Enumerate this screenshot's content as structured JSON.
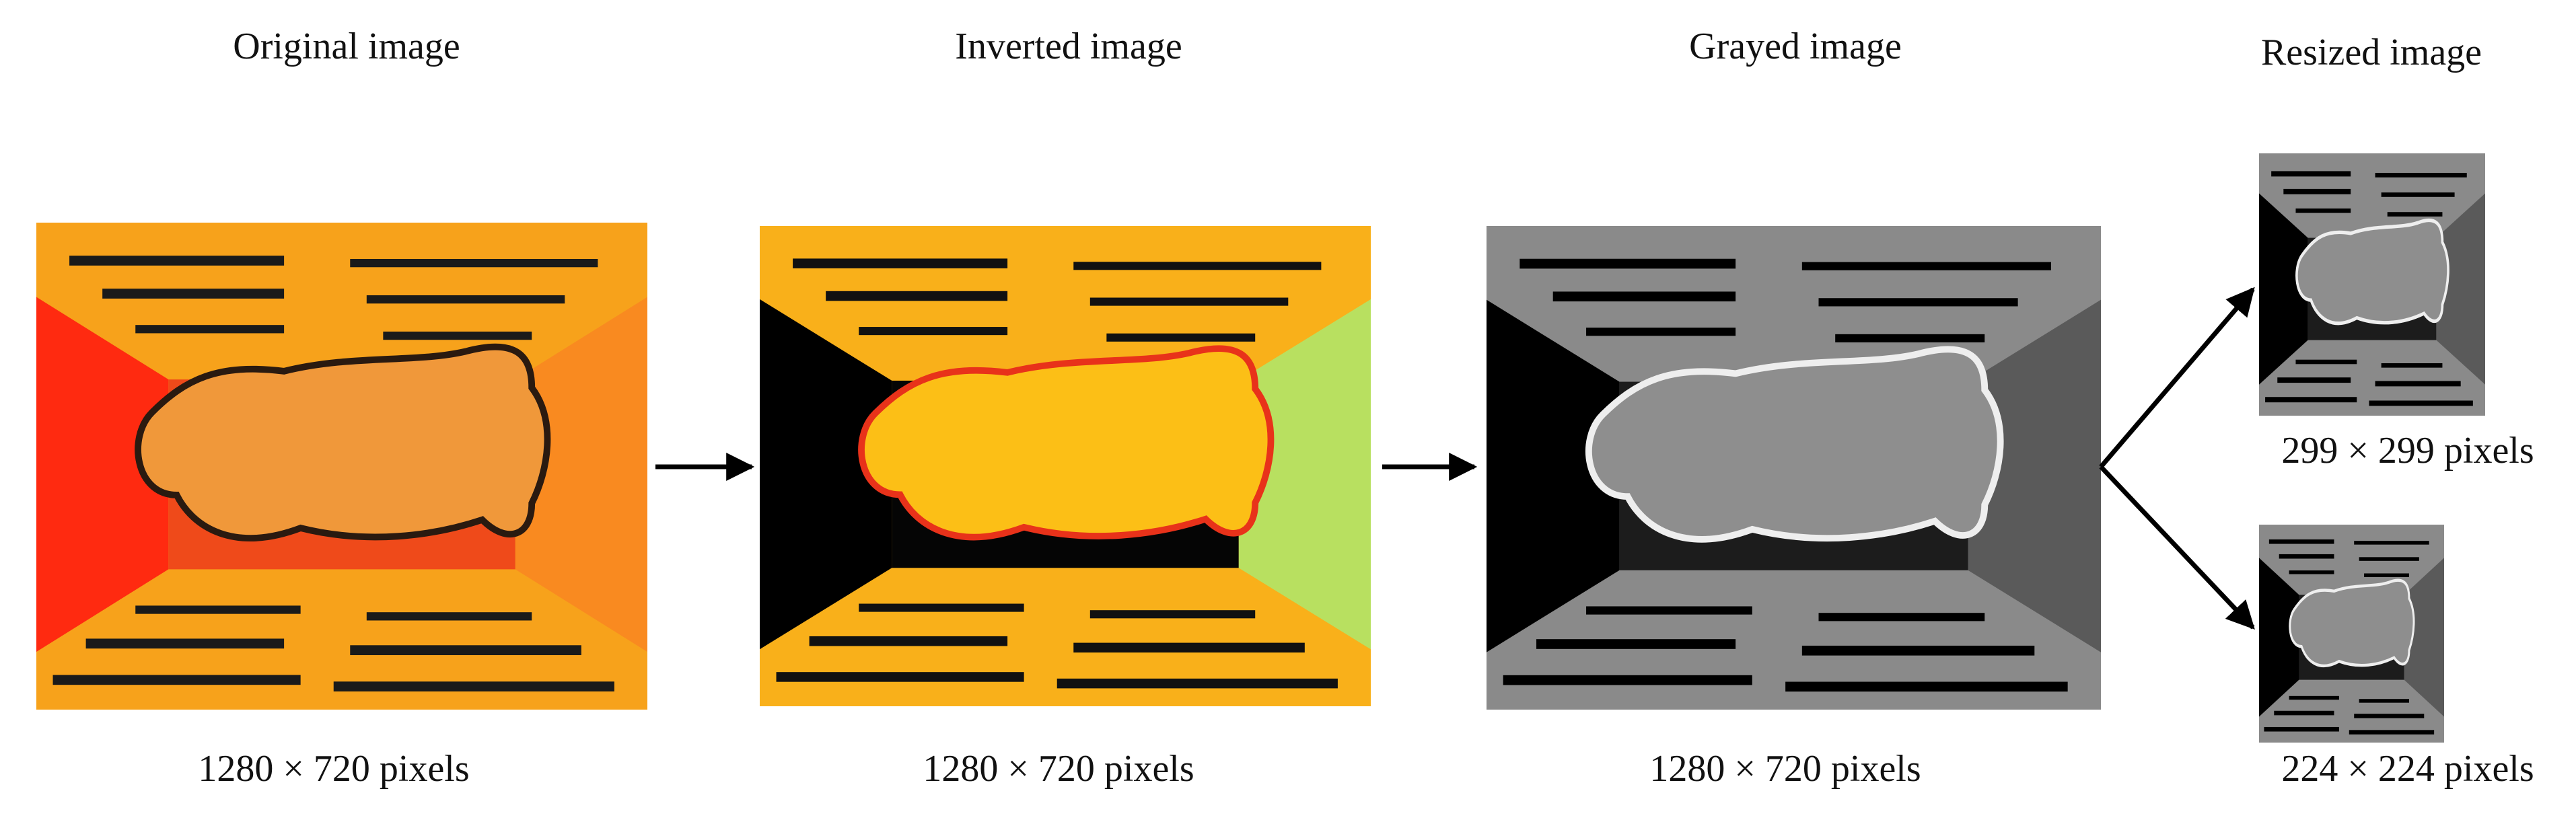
{
  "panels": [
    {
      "title": "Original image",
      "caption": "1280 × 720 pixels"
    },
    {
      "title": "Inverted image",
      "caption": "1280 × 720 pixels"
    },
    {
      "title": "Grayed image",
      "caption": "1280 × 720 pixels"
    }
  ],
  "resized": {
    "title": "Resized image",
    "captions": [
      "299 × 299 pixels",
      "224 × 224 pixels"
    ]
  }
}
